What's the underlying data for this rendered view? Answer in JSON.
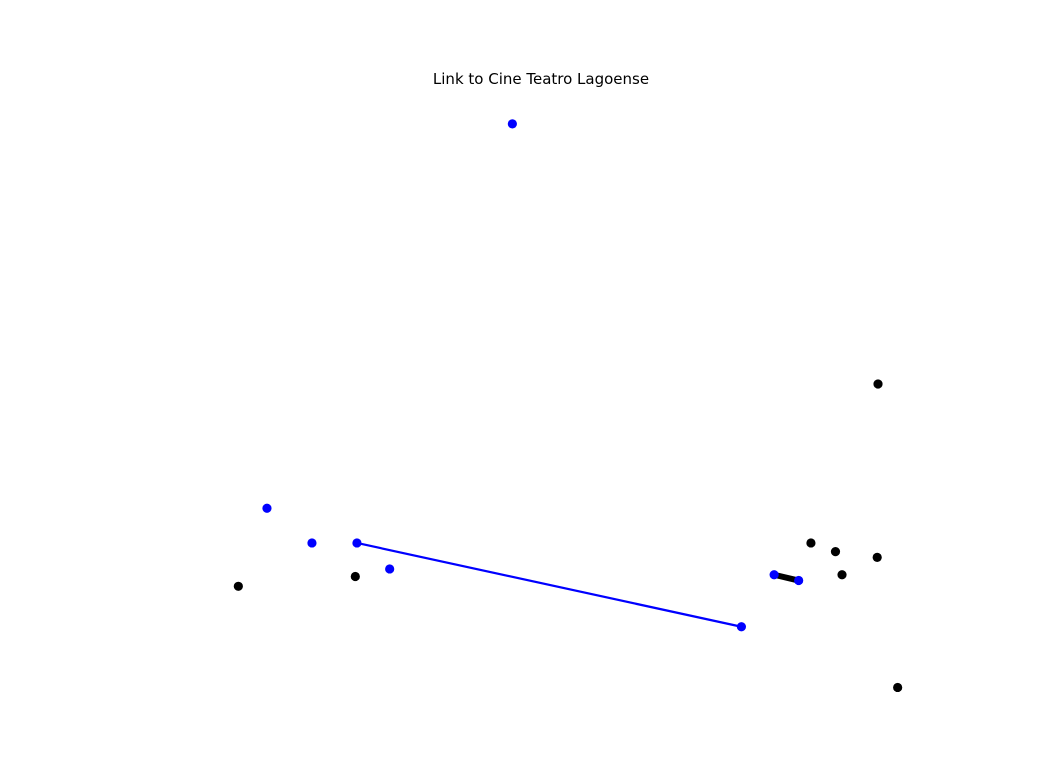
{
  "chart_data": {
    "type": "scatter",
    "title": "Link to Cine Teatro Lagoense",
    "xlabel": "",
    "ylabel": "",
    "axes_visible": false,
    "grid": false,
    "legend": "none",
    "xlim": [
      0,
      100
    ],
    "ylim": [
      0,
      100
    ],
    "colors": {
      "highlight": "#0000ff",
      "default": "#000000"
    },
    "points": [
      {
        "x": 46.5,
        "y": 95.0,
        "group": "highlight"
      },
      {
        "x": 16.5,
        "y": 28.5,
        "group": "highlight"
      },
      {
        "x": 22.0,
        "y": 22.5,
        "group": "highlight"
      },
      {
        "x": 27.5,
        "y": 22.5,
        "group": "highlight"
      },
      {
        "x": 31.5,
        "y": 18.0,
        "group": "highlight"
      },
      {
        "x": 74.5,
        "y": 8.0,
        "group": "highlight"
      },
      {
        "x": 78.5,
        "y": 17.0,
        "group": "highlight"
      },
      {
        "x": 81.5,
        "y": 16.0,
        "group": "highlight"
      },
      {
        "x": 13.0,
        "y": 15.0,
        "group": "default"
      },
      {
        "x": 27.3,
        "y": 16.7,
        "group": "default"
      },
      {
        "x": 83.0,
        "y": 22.5,
        "group": "default"
      },
      {
        "x": 86.0,
        "y": 21.0,
        "group": "default"
      },
      {
        "x": 91.2,
        "y": 50.0,
        "group": "default"
      },
      {
        "x": 91.1,
        "y": 20.0,
        "group": "default"
      },
      {
        "x": 86.8,
        "y": 17.0,
        "group": "default"
      },
      {
        "x": 93.6,
        "y": -2.5,
        "group": "default"
      }
    ],
    "links": [
      {
        "from": [
          27.5,
          22.5
        ],
        "to": [
          74.5,
          8.0
        ],
        "color": "highlight",
        "width": 2.2
      },
      {
        "from": [
          78.5,
          17.0
        ],
        "to": [
          81.5,
          16.0
        ],
        "color": "default",
        "width": 6
      }
    ]
  }
}
